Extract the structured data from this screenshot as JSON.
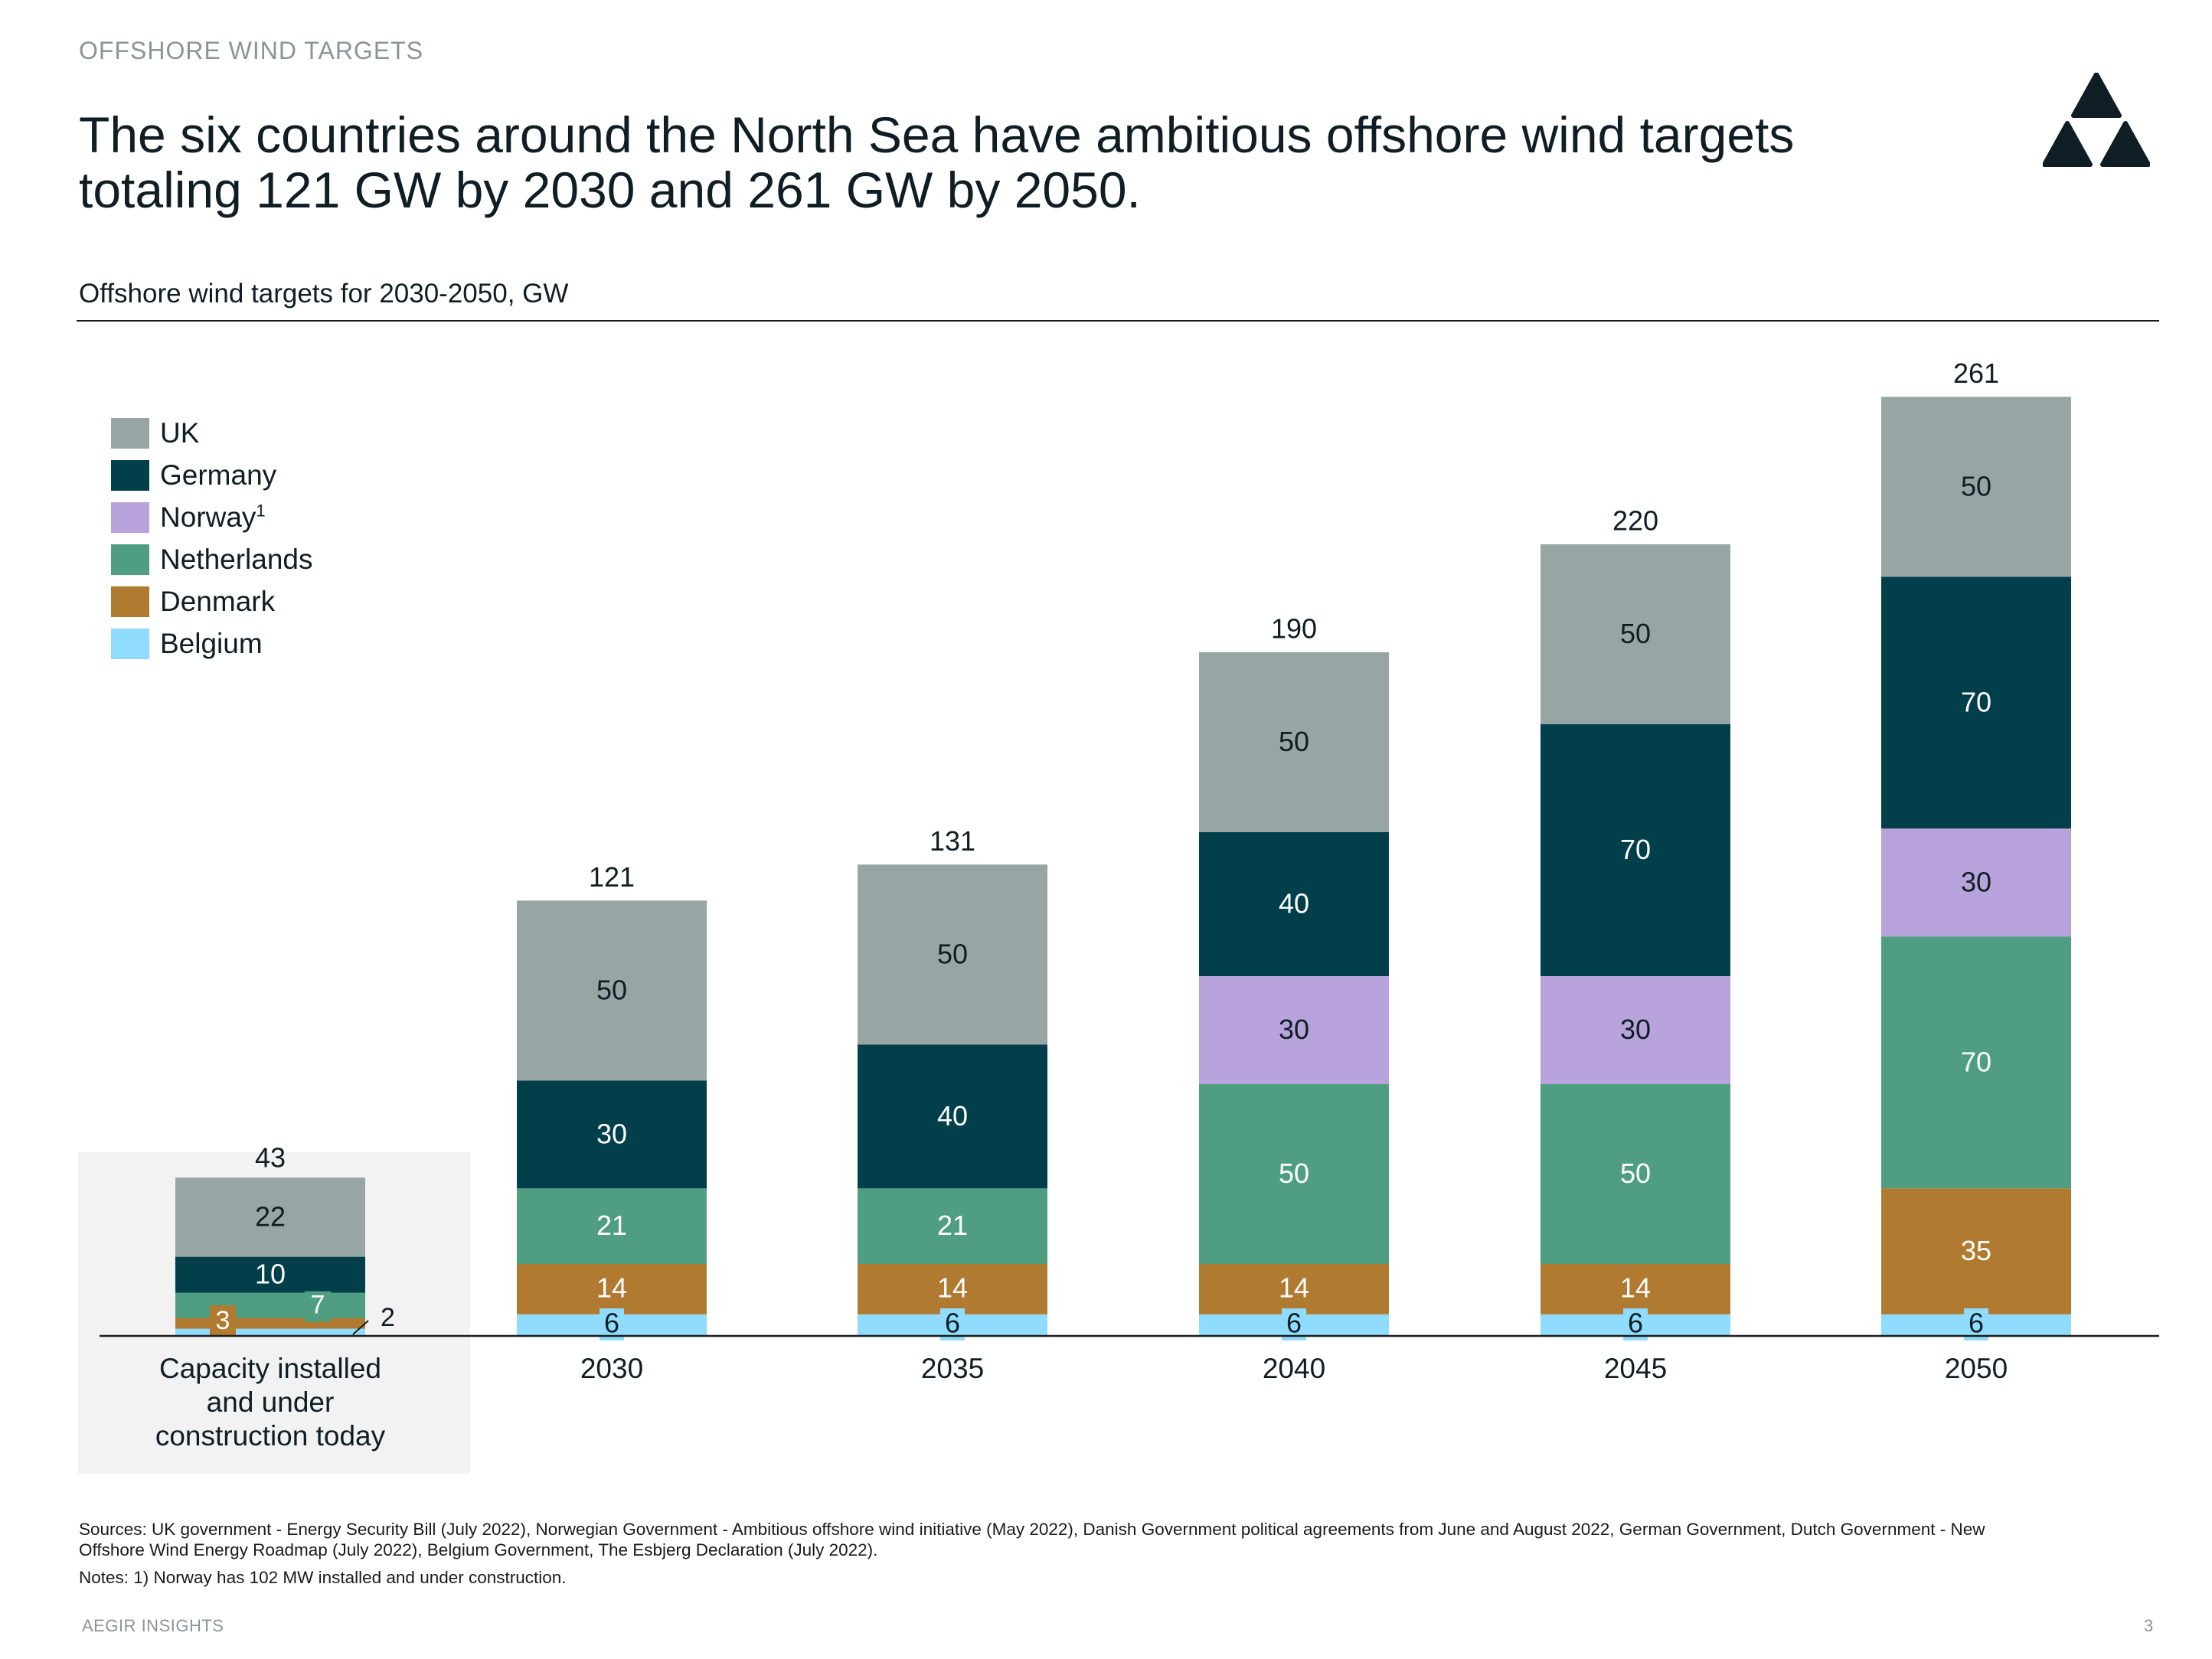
{
  "header": {
    "section_label": "OFFSHORE WIND TARGETS",
    "headline_line1": "The six countries around the North Sea have ambitious offshore wind targets",
    "headline_line2": "totaling 121 GW by 2030 and 261 GW by 2050.",
    "logo_icon": "triangles-logo-icon"
  },
  "subtitle": "Offshore wind targets for 2030-2050, GW",
  "legend": {
    "items": [
      {
        "label": "UK",
        "color": "#97a6a5"
      },
      {
        "label": "Germany",
        "color": "#023f4a"
      },
      {
        "label": "Norway",
        "sup": "1",
        "color": "#b9a3dc"
      },
      {
        "label": "Netherlands",
        "color": "#4f9e81"
      },
      {
        "label": "Denmark",
        "color": "#b07a30"
      },
      {
        "label": "Belgium",
        "color": "#8fdcff"
      }
    ]
  },
  "chart_data": {
    "type": "stacked-bar",
    "title": "Offshore wind targets for 2030-2050, GW",
    "unit": "GW",
    "ylim": [
      0,
      261
    ],
    "grid": false,
    "legend_position": "top-left",
    "categories": [
      "Capacity installed and under construction today",
      "2030",
      "2035",
      "2040",
      "2045",
      "2050"
    ],
    "category_labels": [
      [
        "Capacity installed",
        "and under",
        "construction today"
      ],
      [
        "2030"
      ],
      [
        "2035"
      ],
      [
        "2040"
      ],
      [
        "2045"
      ],
      [
        "2050"
      ]
    ],
    "totals": [
      43,
      121,
      131,
      190,
      220,
      261
    ],
    "series": [
      {
        "name": "Belgium",
        "color": "#8fdcff",
        "values": [
          2,
          6,
          6,
          6,
          6,
          6
        ]
      },
      {
        "name": "Denmark",
        "color": "#b07a30",
        "values": [
          3,
          14,
          14,
          14,
          14,
          35
        ]
      },
      {
        "name": "Netherlands",
        "color": "#4f9e81",
        "values": [
          7,
          21,
          21,
          50,
          50,
          70
        ]
      },
      {
        "name": "Norway",
        "color": "#b9a3dc",
        "values": [
          0,
          0,
          0,
          30,
          30,
          30
        ]
      },
      {
        "name": "Germany",
        "color": "#023f4a",
        "values": [
          10,
          30,
          40,
          40,
          70,
          70
        ]
      },
      {
        "name": "UK",
        "color": "#97a6a5",
        "values": [
          22,
          50,
          50,
          50,
          50,
          50
        ]
      }
    ],
    "label_text_colors": {
      "Belgium": "#0f1e24",
      "Denmark": "#ffffff",
      "Netherlands": "#ffffff",
      "Norway": "#0f1e24",
      "Germany": "#ffffff",
      "UK": "#0f1e24"
    }
  },
  "sources_line1": "Sources: UK government - Energy Security Bill (July 2022), Norwegian Government - Ambitious offshore wind initiative (May 2022), Danish Government political agreements from June and August 2022, German Government, Dutch Government - New",
  "sources_line2": "Offshore Wind Energy Roadmap (July 2022), Belgium Government, The Esbjerg Declaration (July 2022).",
  "notes": "Notes: 1) Norway has 102 MW installed and under construction.",
  "footer": {
    "brand": "AEGIR INSIGHTS",
    "page_number": "3"
  }
}
